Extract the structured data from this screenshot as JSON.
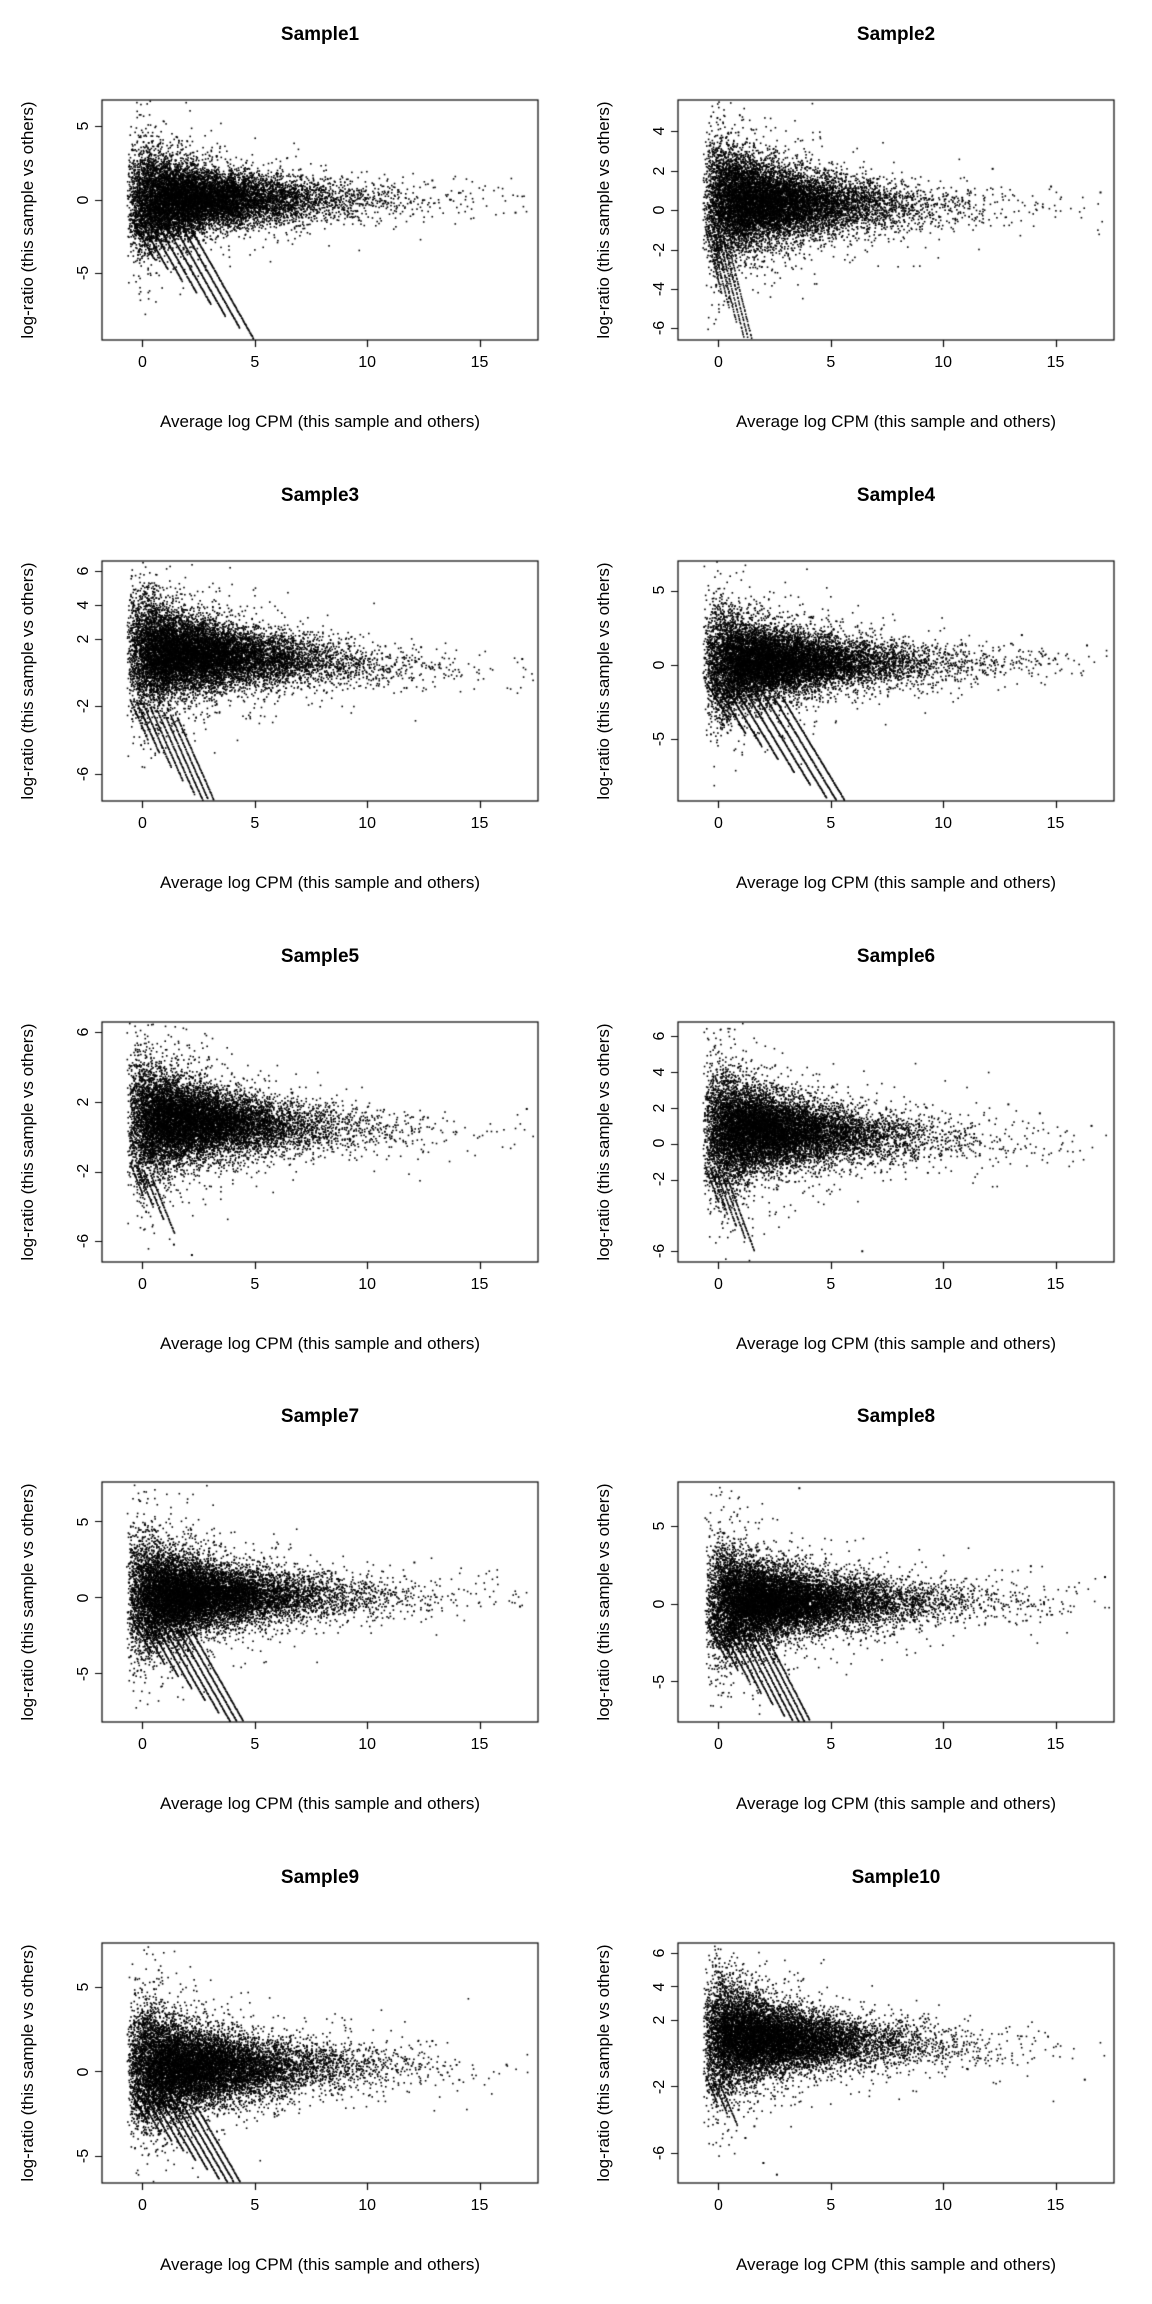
{
  "colors": {
    "background": "#ffffff",
    "frame": "#000000",
    "point": "#000000",
    "text": "#000000"
  },
  "chart_data": [
    {
      "type": "scatter",
      "title": "Sample1",
      "xlabel": "Average log CPM (this sample and others)",
      "ylabel": "log-ratio (this sample vs others)",
      "xlim": [
        -1.8,
        17.6
      ],
      "ylim": [
        -9.6,
        6.8
      ],
      "x_ticks": [
        0,
        5,
        10,
        15
      ],
      "y_ticks": [
        -5,
        0,
        5
      ],
      "seed": 11,
      "cloud": {
        "n": 11000,
        "x_shift": -0.7,
        "x_scale": 2.0,
        "y_center": 0.0,
        "y_slope": 0,
        "base_sd": 0.5,
        "funnel": 2.4
      },
      "streaks": {
        "n": 8,
        "x0": -0.5,
        "y0": -1.3,
        "dx": 0.38,
        "dy": -0.1,
        "slope": -2.7,
        "len0": 1.0,
        "dlen": 0.26
      },
      "outliers": {
        "x": [
          16.6,
          12.9
        ],
        "y": [
          -0.9,
          1.3
        ]
      }
    },
    {
      "type": "scatter",
      "title": "Sample2",
      "xlabel": "Average log CPM (this sample and others)",
      "ylabel": "log-ratio (this sample vs others)",
      "xlim": [
        -1.8,
        17.6
      ],
      "ylim": [
        -6.6,
        5.6
      ],
      "x_ticks": [
        0,
        5,
        10,
        15
      ],
      "y_ticks": [
        -6,
        -4,
        -2,
        0,
        2,
        4
      ],
      "seed": 22,
      "cloud": {
        "n": 11000,
        "x_shift": -0.7,
        "x_scale": 1.9,
        "y_center": 0.45,
        "y_slope": -0.03,
        "base_sd": 0.45,
        "funnel": 2.1
      },
      "streaks": {
        "n": 6,
        "x0": -0.6,
        "y0": -0.8,
        "dx": 0.2,
        "dy": -0.15,
        "slope": -4.6,
        "len0": 0.75,
        "dlen": 0.13
      },
      "outliers": {
        "x": [
          17.0,
          14.8,
          12.2
        ],
        "y": [
          0.9,
          1.2,
          2.1
        ]
      }
    },
    {
      "type": "scatter",
      "title": "Sample3",
      "xlabel": "Average log CPM (this sample and others)",
      "ylabel": "log-ratio (this sample vs others)",
      "xlim": [
        -1.8,
        17.6
      ],
      "ylim": [
        -7.6,
        6.6
      ],
      "x_ticks": [
        0,
        5,
        10,
        15
      ],
      "y_ticks": [
        -6,
        -2,
        2,
        4,
        6
      ],
      "seed": 33,
      "cloud": {
        "n": 12000,
        "x_shift": -0.7,
        "x_scale": 2.0,
        "y_center": 1.2,
        "y_slope": -0.07,
        "base_sd": 0.5,
        "funnel": 2.2
      },
      "streaks": {
        "n": 8,
        "x0": -0.55,
        "y0": -1.6,
        "dx": 0.3,
        "dy": -0.15,
        "slope": -3.0,
        "len0": 0.8,
        "dlen": 0.22
      },
      "outliers": {
        "x": [
          16.9,
          12.4
        ],
        "y": [
          0.8,
          1.5
        ]
      }
    },
    {
      "type": "scatter",
      "title": "Sample4",
      "xlabel": "Average log CPM (this sample and others)",
      "ylabel": "log-ratio (this sample vs others)",
      "xlim": [
        -1.8,
        17.6
      ],
      "ylim": [
        -9.2,
        7.0
      ],
      "x_ticks": [
        0,
        5,
        10,
        15
      ],
      "y_ticks": [
        -5,
        0,
        5
      ],
      "seed": 44,
      "cloud": {
        "n": 11500,
        "x_shift": -0.7,
        "x_scale": 2.1,
        "y_center": 0.15,
        "y_slope": 0,
        "base_sd": 0.55,
        "funnel": 2.4
      },
      "streaks": {
        "n": 9,
        "x0": -0.5,
        "y0": -1.3,
        "dx": 0.42,
        "dy": -0.12,
        "slope": -2.5,
        "len0": 1.0,
        "dlen": 0.3
      },
      "outliers": {
        "x": [
          16.4,
          13.5
        ],
        "y": [
          1.3,
          2.0
        ]
      }
    },
    {
      "type": "scatter",
      "title": "Sample5",
      "xlabel": "Average log CPM (this sample and others)",
      "ylabel": "log-ratio (this sample vs others)",
      "xlim": [
        -1.8,
        17.6
      ],
      "ylim": [
        -7.2,
        6.6
      ],
      "x_ticks": [
        0,
        5,
        10,
        15
      ],
      "y_ticks": [
        -6,
        -2,
        2,
        6
      ],
      "seed": 55,
      "cloud": {
        "n": 11000,
        "x_shift": -0.7,
        "x_scale": 1.9,
        "y_center": 1.0,
        "y_slope": -0.06,
        "base_sd": 0.5,
        "funnel": 2.2
      },
      "streaks": {
        "n": 4,
        "x0": -0.55,
        "y0": -1.5,
        "dx": 0.3,
        "dy": -0.2,
        "slope": -3.2,
        "len0": 0.55,
        "dlen": 0.18
      },
      "outliers": {
        "x": [
          1.4,
          2.2,
          17.1,
          12.7
        ],
        "y": [
          -6.2,
          -6.8,
          1.6,
          1.1
        ]
      }
    },
    {
      "type": "scatter",
      "title": "Sample6",
      "xlabel": "Average log CPM (this sample and others)",
      "ylabel": "log-ratio (this sample vs others)",
      "xlim": [
        -1.8,
        17.6
      ],
      "ylim": [
        -6.6,
        6.8
      ],
      "x_ticks": [
        0,
        5,
        10,
        15
      ],
      "y_ticks": [
        -6,
        -2,
        0,
        2,
        4,
        6
      ],
      "seed": 66,
      "cloud": {
        "n": 11000,
        "x_shift": -0.7,
        "x_scale": 1.95,
        "y_center": 0.8,
        "y_slope": -0.05,
        "base_sd": 0.5,
        "funnel": 2.2
      },
      "streaks": {
        "n": 5,
        "x0": -0.6,
        "y0": -1.2,
        "dx": 0.25,
        "dy": -0.18,
        "slope": -3.4,
        "len0": 0.6,
        "dlen": 0.15
      },
      "outliers": {
        "x": [
          6.4,
          14.3,
          16.6,
          12.9
        ],
        "y": [
          -6.0,
          1.7,
          1.0,
          2.2
        ]
      }
    },
    {
      "type": "scatter",
      "title": "Sample7",
      "xlabel": "Average log CPM (this sample and others)",
      "ylabel": "log-ratio (this sample vs others)",
      "xlim": [
        -1.8,
        17.6
      ],
      "ylim": [
        -8.2,
        7.6
      ],
      "x_ticks": [
        0,
        5,
        10,
        15
      ],
      "y_ticks": [
        -5,
        0,
        5
      ],
      "seed": 77,
      "cloud": {
        "n": 12000,
        "x_shift": -0.7,
        "x_scale": 2.0,
        "y_center": 0.1,
        "y_slope": 0,
        "base_sd": 0.55,
        "funnel": 2.5
      },
      "streaks": {
        "n": 9,
        "x0": -0.5,
        "y0": -1.3,
        "dx": 0.34,
        "dy": -0.12,
        "slope": -2.6,
        "len0": 0.9,
        "dlen": 0.26
      },
      "outliers": {
        "x": [
          16.8,
          12.1
        ],
        "y": [
          -0.6,
          2.3
        ]
      }
    },
    {
      "type": "scatter",
      "title": "Sample8",
      "xlabel": "Average log CPM (this sample and others)",
      "ylabel": "log-ratio (this sample vs others)",
      "xlim": [
        -1.8,
        17.6
      ],
      "ylim": [
        -7.6,
        7.8
      ],
      "x_ticks": [
        0,
        5,
        10,
        15
      ],
      "y_ticks": [
        -5,
        0,
        5
      ],
      "seed": 88,
      "cloud": {
        "n": 12000,
        "x_shift": -0.6,
        "x_scale": 2.1,
        "y_center": 0.1,
        "y_slope": 0,
        "base_sd": 0.55,
        "funnel": 2.4
      },
      "streaks": {
        "n": 10,
        "x0": -0.5,
        "y0": -1.2,
        "dx": 0.3,
        "dy": -0.12,
        "slope": -2.8,
        "len0": 0.85,
        "dlen": 0.22
      },
      "outliers": {
        "x": [
          3.6,
          17.2,
          13.9
        ],
        "y": [
          7.4,
          1.7,
          2.4
        ]
      }
    },
    {
      "type": "scatter",
      "title": "Sample9",
      "xlabel": "Average log CPM (this sample and others)",
      "ylabel": "log-ratio (this sample vs others)",
      "xlim": [
        -1.8,
        17.6
      ],
      "ylim": [
        -6.6,
        7.6
      ],
      "x_ticks": [
        0,
        5,
        10,
        15
      ],
      "y_ticks": [
        -5,
        0,
        5
      ],
      "seed": 99,
      "cloud": {
        "n": 11500,
        "x_shift": -0.7,
        "x_scale": 2.0,
        "y_center": 0.25,
        "y_slope": 0,
        "base_sd": 0.55,
        "funnel": 2.4
      },
      "streaks": {
        "n": 10,
        "x0": -0.55,
        "y0": -1.2,
        "dx": 0.33,
        "dy": -0.1,
        "slope": -2.3,
        "len0": 0.8,
        "dlen": 0.2
      },
      "outliers": {
        "x": [
          16.2,
          12.9,
          14.1
        ],
        "y": [
          0.4,
          1.8,
          -0.5
        ]
      }
    },
    {
      "type": "scatter",
      "title": "Sample10",
      "xlabel": "Average log CPM (this sample and others)",
      "ylabel": "log-ratio (this sample vs others)",
      "xlim": [
        -1.8,
        17.6
      ],
      "ylim": [
        -7.8,
        6.6
      ],
      "x_ticks": [
        0,
        5,
        10,
        15
      ],
      "y_ticks": [
        -6,
        -2,
        2,
        4,
        6
      ],
      "seed": 110,
      "cloud": {
        "n": 11000,
        "x_shift": -0.7,
        "x_scale": 1.9,
        "y_center": 1.0,
        "y_slope": -0.06,
        "base_sd": 0.5,
        "funnel": 2.2
      },
      "streaks": {
        "n": 3,
        "x0": -0.55,
        "y0": -1.4,
        "dx": 0.3,
        "dy": -0.2,
        "slope": -3.2,
        "len0": 0.5,
        "dlen": 0.15
      },
      "outliers": {
        "x": [
          1.2,
          2.0,
          2.6,
          1.6,
          16.3,
          0.9
        ],
        "y": [
          -5.1,
          -6.6,
          -7.3,
          -4.4,
          -1.6,
          -3.4
        ]
      }
    }
  ]
}
